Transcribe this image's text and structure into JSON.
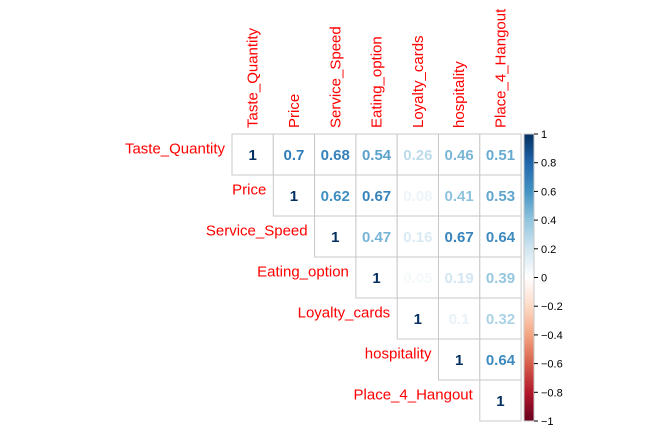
{
  "chart_data": {
    "type": "heatmap",
    "variables": [
      "Taste_Quantity",
      "Price",
      "Service_Speed",
      "Eating_option",
      "Loyalty_cards",
      "hospitality",
      "Place_4_Hangout"
    ],
    "matrix": [
      [
        1,
        0.7,
        0.68,
        0.54,
        0.26,
        0.46,
        0.51
      ],
      [
        null,
        1,
        0.62,
        0.67,
        0.08,
        0.41,
        0.53
      ],
      [
        null,
        null,
        1,
        0.47,
        0.16,
        0.67,
        0.64
      ],
      [
        null,
        null,
        null,
        1,
        0.05,
        0.19,
        0.39
      ],
      [
        null,
        null,
        null,
        null,
        1,
        0.1,
        0.32
      ],
      [
        null,
        null,
        null,
        null,
        null,
        1,
        0.64
      ],
      [
        null,
        null,
        null,
        null,
        null,
        null,
        1
      ]
    ],
    "cell_labels": [
      [
        "1",
        "0.7",
        "0.68",
        "0.54",
        "0.26",
        "0.46",
        "0.51"
      ],
      [
        "",
        "1",
        "0.62",
        "0.67",
        "0.08",
        "0.41",
        "0.53"
      ],
      [
        "",
        "",
        "1",
        "0.47",
        "0.16",
        "0.67",
        "0.64"
      ],
      [
        "",
        "",
        "",
        "1",
        "0.05",
        "0.19",
        "0.39"
      ],
      [
        "",
        "",
        "",
        "",
        "1",
        "0.1",
        "0.32"
      ],
      [
        "",
        "",
        "",
        "",
        "",
        "1",
        "0.64"
      ],
      [
        "",
        "",
        "",
        "",
        "",
        "",
        "1"
      ]
    ],
    "layout": "upper-triangle",
    "color_scale": {
      "range": [
        -1,
        1
      ],
      "ticks": [
        1,
        0.8,
        0.6,
        0.4,
        0.2,
        0,
        -0.2,
        -0.4,
        -0.6,
        -0.8,
        -1
      ],
      "tick_labels": [
        "1",
        "0.8",
        "0.6",
        "0.4",
        "0.2",
        "0",
        "−0.2",
        "−0.4",
        "−0.6",
        "−0.8",
        "−1"
      ],
      "colors": [
        "#67001f",
        "#b2182b",
        "#d6604d",
        "#f4a582",
        "#fddbc7",
        "#ffffff",
        "#d1e5f0",
        "#92c5de",
        "#4393c3",
        "#2166ac",
        "#053061"
      ]
    },
    "label_color": "#ff0000",
    "legend_placement": "right"
  }
}
